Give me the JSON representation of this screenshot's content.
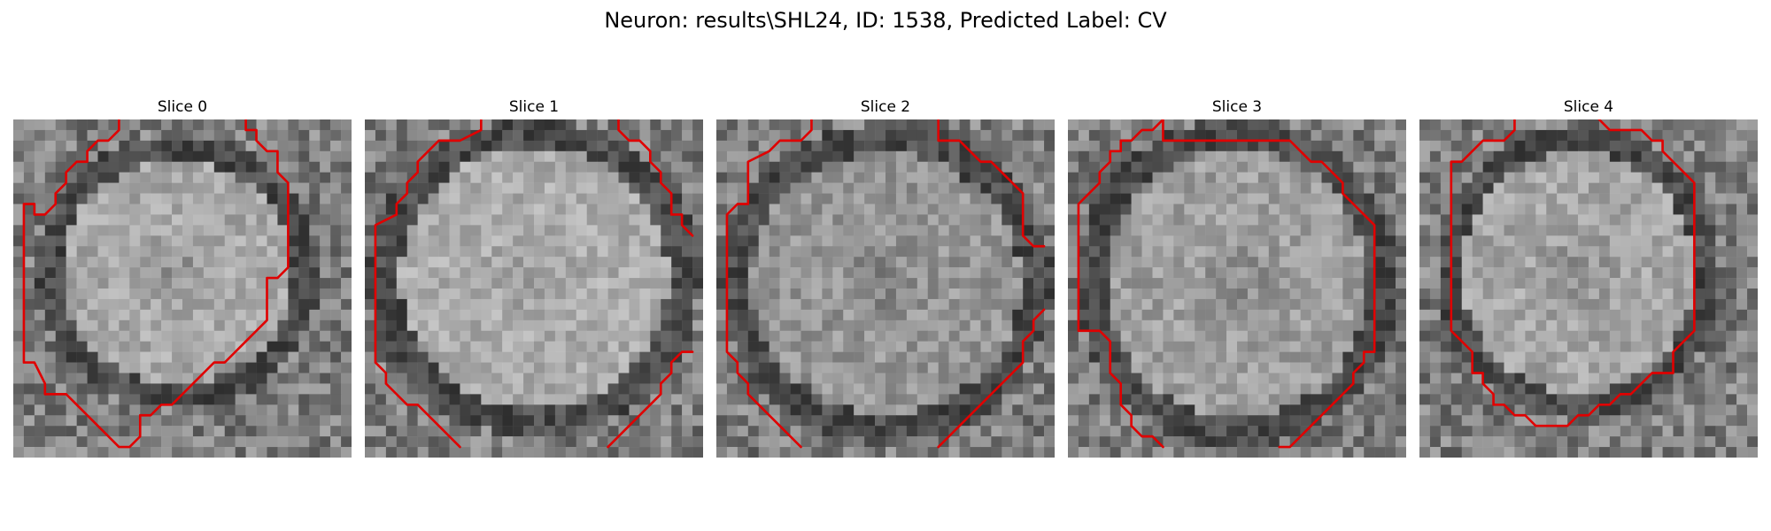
{
  "figure": {
    "title": "Neuron: results\\SHL24, ID: 1538, Predicted Label: CV"
  },
  "slices": [
    {
      "title": "Slice 0"
    },
    {
      "title": "Slice 1"
    },
    {
      "title": "Slice 2"
    },
    {
      "title": "Slice 3"
    },
    {
      "title": "Slice 4"
    }
  ],
  "colors": {
    "contour": "#e00000",
    "background": "#ffffff"
  }
}
